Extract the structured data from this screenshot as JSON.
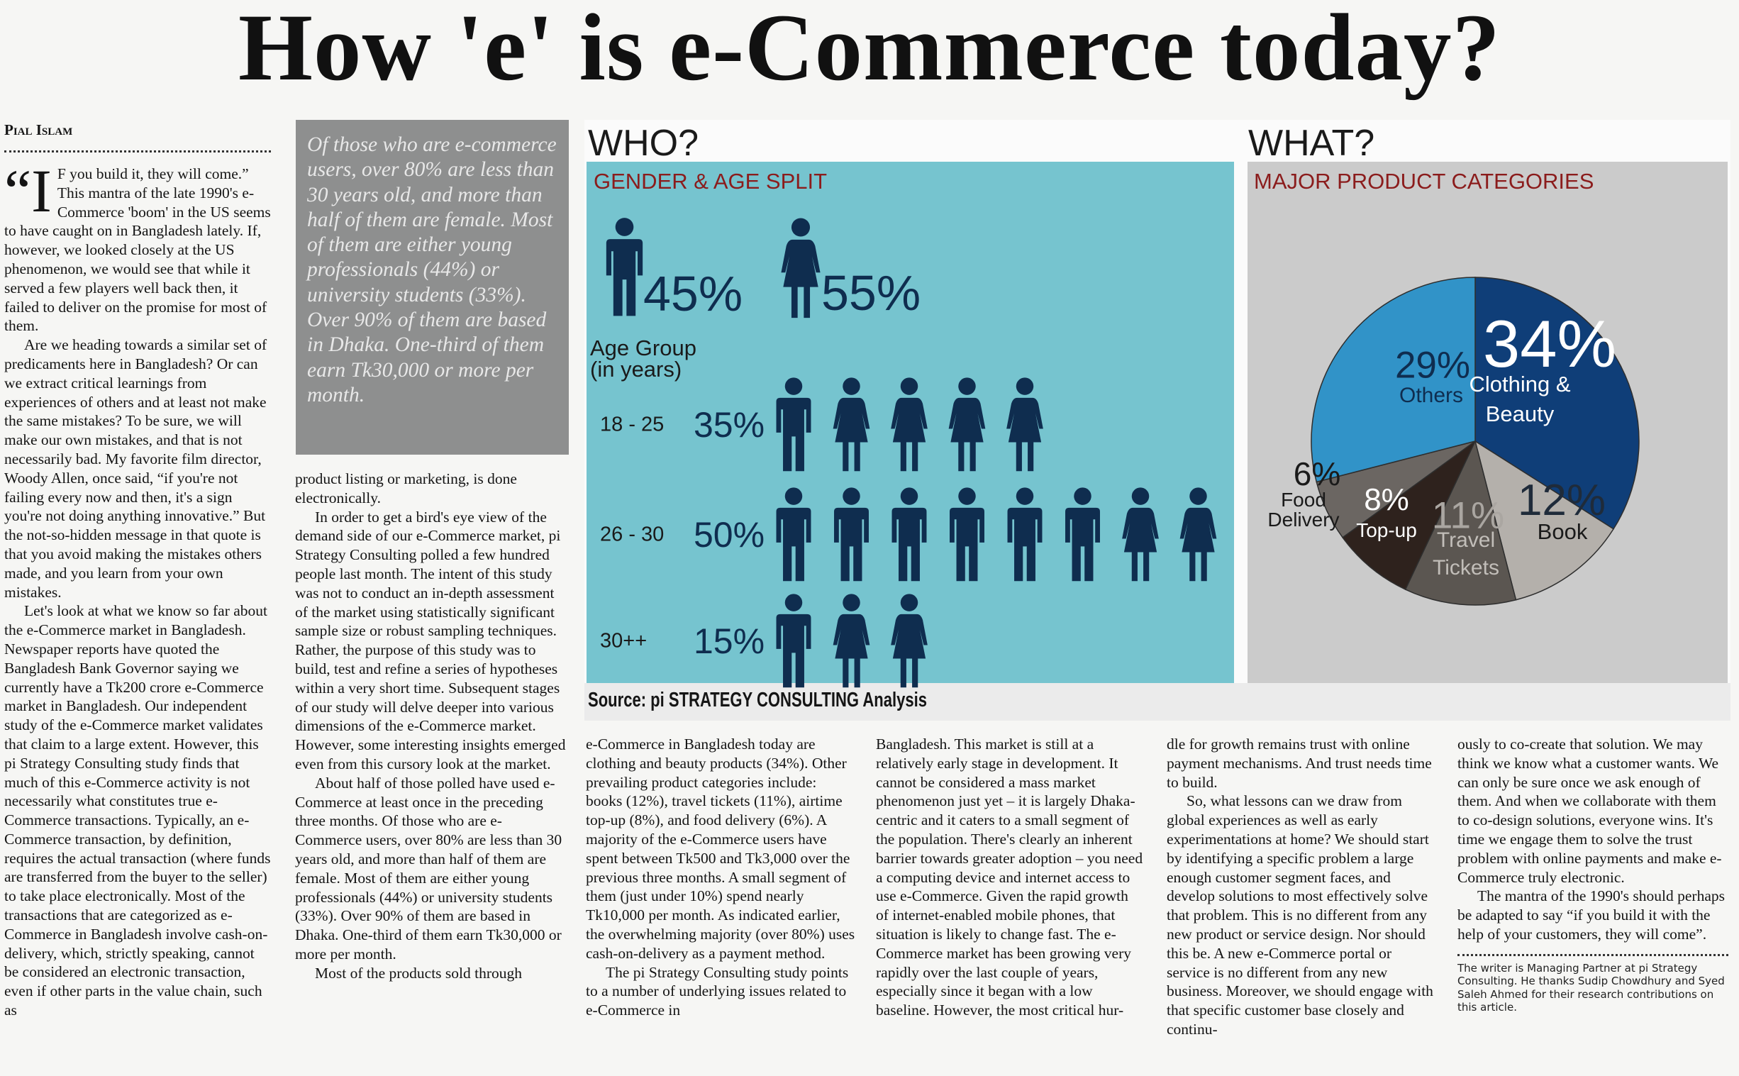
{
  "headline": "How 'e' is e-Commerce today?",
  "byline": "Pial Islam",
  "pull_quote": "Of those who are e-commerce users, over 80% are less than 30 years old, and more than half of them are female. Most of them are either young professionals (44%) or university students (33%). Over 90% of them are based in Dhaka. One-third of them earn Tk30,000 or more per month.",
  "columns": [
    {
      "drop_cap": "“I",
      "paragraphs": [
        "F you build it, they will come.” This mantra of the late 1990's e-Commerce 'boom' in the US seems to have caught on in Bangladesh lately. If, however, we looked closely at the US phenomenon, we would see that while it served a few players well back then, it failed to deliver on the promise for most of them.",
        "Are we heading towards a similar set of predicaments here in Bangladesh? Or can we extract critical learnings from experiences of others and at least not make the same mistakes? To be sure, we will make our own mistakes, and that is not necessarily bad. My favorite film director, Woody Allen, once said, “if you're not failing every now and then, it's a sign you're not doing anything innovative.” But the not-so-hidden message in that quote is that you avoid making the mistakes others made, and you learn from your own mistakes.",
        "Let's look at what we know so far about the e-Commerce market in Bangladesh. Newspaper reports have quoted the Bangladesh Bank Governor saying we currently have a Tk200 crore e-Commerce market in Bangladesh. Our independent study of the e-Commerce market validates that claim to a large extent. However, this pi Strategy Consulting study finds that much of this e-Commerce activity is not necessarily what constitutes true e-Commerce transactions. Typically, an e-Commerce transaction, by definition, requires the actual transaction (where funds are transferred from the buyer to the seller) to take place electronically. Most of the transactions that are categorized as e-Commerce in Bangladesh involve cash-on-delivery, which, strictly speaking, cannot be considered an electronic transaction, even if other parts in the value chain, such as"
      ]
    },
    {
      "paragraphs": [
        "product listing or marketing, is done electronically.",
        "In order to get a bird's eye view of the demand side of our e-Commerce market, pi Strategy Consulting polled a few hundred people last month. The intent of this study was not to conduct an in-depth assessment of the market using statistically significant sample size or robust sampling techniques. Rather, the purpose of this study was to build, test and refine a series of hypotheses within a very short time. Subsequent stages of our study will delve deeper into various dimensions of the e-Commerce market. However, some interesting insights emerged even from this cursory look at the market.",
        "About half of those polled have used e-Commerce at least once in the preceding three months. Of those who are e-Commerce users, over 80% are less than 30 years old, and more than half of them are female. Most of them are either young professionals (44%) or university students (33%). Over 90% of them are based in Dhaka. One-third of them earn Tk30,000 or more per month.",
        "Most of the products sold through"
      ]
    },
    {
      "paragraphs": [
        "e-Commerce in Bangladesh today are clothing and beauty products (34%). Other prevailing product categories include: books (12%), travel tickets (11%), airtime top-up (8%), and food delivery (6%). A majority of the e-Commerce users have spent between Tk500 and Tk3,000 over the previous three months. A small segment of them (just under 10%) spend nearly Tk10,000 per month. As indicated earlier, the overwhelming majority (over 80%) uses cash-on-delivery as a payment method.",
        "The pi Strategy Consulting study points to a number of underlying issues related to e-Commerce in"
      ]
    },
    {
      "paragraphs": [
        "Bangladesh. This market is still at a relatively early stage in development. It cannot be considered a mass market phenomenon just yet – it is largely Dhaka-centric and it caters to a small segment of the population. There's clearly an inherent barrier towards greater adoption – you need a computing device and internet access to use e-Commerce. Given the rapid growth of internet-enabled mobile phones, that situation is likely to change fast. The e-Commerce market has been growing very rapidly over the last couple of years, especially since it began with a low baseline. However, the most critical hur-"
      ]
    },
    {
      "paragraphs": [
        "dle for growth remains trust with online payment mechanisms. And trust needs time to build.",
        "So, what lessons can we draw from global experiences as well as early experimentations at home? We should start by identifying a specific problem a large enough customer segment faces, and develop solutions to most effectively solve that problem. This is no different from any new product or service design. Nor should this be. A new e-Commerce portal or service is no different from any new business. Moreover, we should engage with that specific customer base closely and continu-"
      ]
    },
    {
      "paragraphs": [
        "ously to co-create that solution. We may think we know what a customer wants. We can only be sure once we ask enough of them. And when we collaborate with them to co-design solutions, everyone wins. It's time we engage them to solve the trust problem with online payments and make e-Commerce truly electronic.",
        "The mantra of the 1990's should perhaps be adapted to say “if you build it with the help of your customers, they will come”."
      ],
      "footnote": "The writer is Managing Partner at pi Strategy Consulting. He thanks Sudip Chowdhury and Syed Saleh Ahmed for their research contributions on this article."
    }
  ],
  "chart_data": [
    {
      "type": "pictograph",
      "title": "WHO?",
      "subtitle": "GENDER & AGE SPLIT",
      "gender": {
        "values": [
          45,
          55
        ],
        "value_labels": [
          "45%",
          "55%"
        ]
      },
      "age_group_label": "Age Group (in years)",
      "categories": [
        "18 - 25",
        "26 - 30",
        "30++"
      ],
      "values": [
        35,
        50,
        15
      ],
      "value_labels": [
        "35%",
        "50%",
        "15%"
      ],
      "male_icons": [
        1,
        6,
        1
      ],
      "female_icons": [
        4,
        2,
        2
      ],
      "color": "#0f2d4f"
    },
    {
      "type": "pie",
      "title": "WHAT?",
      "subtitle": "MAJOR PRODUCT CATEGORIES",
      "categories": [
        "Clothing & Beauty",
        "Book",
        "Travel Tickets",
        "Top-up",
        "Food Delivery",
        "Others"
      ],
      "values": [
        34,
        12,
        11,
        8,
        6,
        29
      ],
      "value_labels": [
        "34%",
        "12%",
        "11%",
        "8%",
        "6%",
        "29%"
      ],
      "colors": [
        "#0f3e78",
        "#b4b0ab",
        "#5b5651",
        "#2e221d",
        "#6b6662",
        "#3193c8"
      ]
    }
  ],
  "source": "Source: pi STRATEGY CONSULTING Analysis"
}
